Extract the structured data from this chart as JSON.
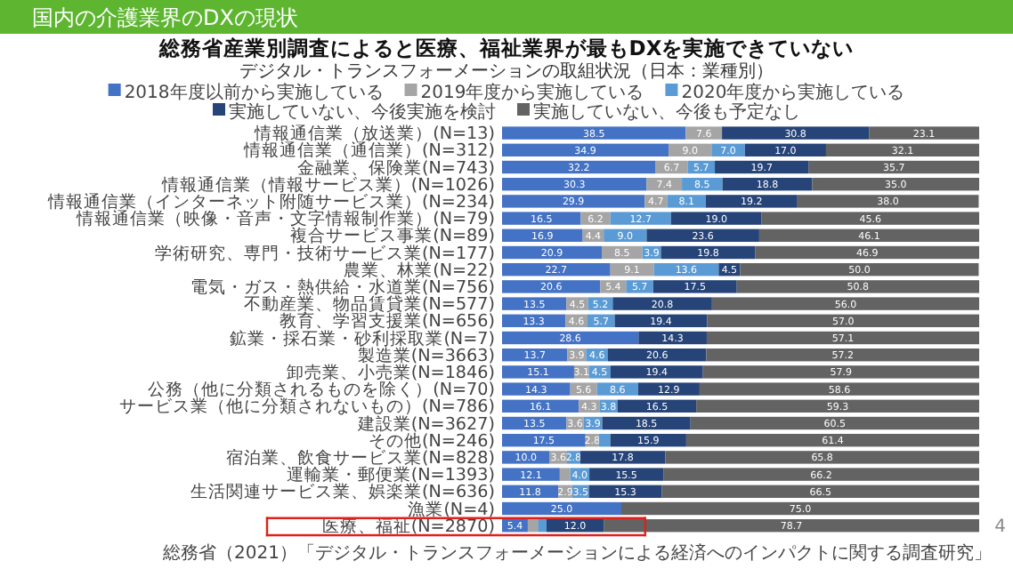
{
  "chart_data": {
    "type": "bar",
    "orientation": "horizontal",
    "stacked": true,
    "title": "国内の介護業界のDXの現状",
    "subtitle": "総務省産業別調査によると医療、福祉業界が最もDXを実施できていない",
    "annotations": [
      "デジタル・トランスフォーメーションの取組状況（日本：業種別）",
      "総務省（2021）「デジタル・トランスフォーメーションによる経済へのインパクトに関する調査研究」",
      "4"
    ],
    "categories": [
      "情報通信業（放送業）(N=13)",
      "情報通信業（通信業）(N=312)",
      "金融業、保険業(N=743)",
      "情報通信業（情報サービス業）(N=1026)",
      "情報通信業（インターネット附随サービス業）(N=234)",
      "情報通信業（映像・音声・文字情報制作業）(N=79)",
      "複合サービス事業(N=89)",
      "学術研究、専門・技術サービス業(N=177)",
      "農業、林業(N=22)",
      "電気・ガス・熱供給・水道業(N=756)",
      "不動産業、物品賃貸業(N=577)",
      "教育、学習支援業(N=656)",
      "鉱業・採石業・砂利採取業(N=7)",
      "製造業(N=3663)",
      "卸売業、小売業(N=1846)",
      "公務（他に分類されるものを除く）(N=70)",
      "サービス業（他に分類されないもの）(N=786)",
      "建設業(N=3627)",
      "その他(N=246)",
      "宿泊業、飲食サービス業(N=828)",
      "運輸業・郵便業(N=1393)",
      "生活関連サービス業、娯楽業(N=636)",
      "漁業(N=4)",
      "医療、福祉(N=2870)"
    ],
    "series": [
      {
        "name": "2018年度以前から実施している",
        "color": "#4472c4",
        "values": [
          38.5,
          34.9,
          32.2,
          30.3,
          29.9,
          16.5,
          16.9,
          20.9,
          22.7,
          20.6,
          13.5,
          13.3,
          28.6,
          13.7,
          15.1,
          14.3,
          16.1,
          13.5,
          17.5,
          10.0,
          12.1,
          11.8,
          25.0,
          5.4
        ],
        "value_labels": [
          "38.5",
          "34.9",
          "32.2",
          "30.3",
          "29.9",
          "16.5",
          "16.9",
          "20.9",
          "22.7",
          "20.6",
          "13.5",
          "13.3",
          "28.6",
          "13.7",
          "15.1",
          "14.3",
          "16.1",
          "13.5",
          "17.5",
          "10.0",
          "12.1",
          "11.8",
          "25.0",
          "5.4"
        ]
      },
      {
        "name": "2019年度から実施している",
        "color": "#a5a5a5",
        "values": [
          7.6,
          9.0,
          6.7,
          7.4,
          4.7,
          6.2,
          4.4,
          8.5,
          9.1,
          5.4,
          4.5,
          4.6,
          0.0,
          3.9,
          3.1,
          5.6,
          4.3,
          3.6,
          2.8,
          3.6,
          2.2,
          2.9,
          0.0,
          2.1
        ],
        "value_labels": [
          "7.6",
          "9.0",
          "6.7",
          "7.4",
          "4.7",
          "6.2",
          "4.4",
          "8.5",
          "9.1",
          "5.4",
          "4.5",
          "4.6",
          null,
          "3.9",
          "3.1",
          "5.6",
          "4.3",
          "3.6",
          "2.8",
          "3.6",
          null,
          "2.9",
          null,
          null
        ]
      },
      {
        "name": "2020年度から実施している",
        "color": "#5b9bd5",
        "values": [
          0.0,
          7.0,
          5.7,
          8.5,
          8.1,
          12.7,
          9.0,
          3.9,
          13.6,
          5.7,
          5.2,
          5.7,
          0.0,
          4.6,
          4.5,
          8.6,
          3.8,
          3.9,
          2.4,
          2.8,
          4.0,
          3.5,
          0.0,
          1.8
        ],
        "value_labels": [
          null,
          "7.0",
          "5.7",
          "8.5",
          "8.1",
          "12.7",
          "9.0",
          "3.9",
          "13.6",
          "5.7",
          "5.2",
          "5.7",
          null,
          "4.6",
          "4.5",
          "8.6",
          "3.8",
          "3.9",
          null,
          "2.8",
          "4.0",
          "3.5",
          null,
          null
        ]
      },
      {
        "name": "実施していない、今後実施を検討",
        "color": "#264478",
        "values": [
          30.8,
          17.0,
          19.7,
          18.8,
          19.2,
          19.0,
          23.6,
          19.8,
          4.5,
          17.5,
          20.8,
          19.4,
          14.3,
          20.6,
          19.4,
          12.9,
          16.5,
          18.5,
          15.9,
          17.8,
          15.5,
          15.3,
          0.0,
          12.0
        ],
        "value_labels": [
          "30.8",
          "17.0",
          "19.7",
          "18.8",
          "19.2",
          "19.0",
          "23.6",
          "19.8",
          "4.5",
          "17.5",
          "20.8",
          "19.4",
          "14.3",
          "20.6",
          "19.4",
          "12.9",
          "16.5",
          "18.5",
          "15.9",
          "17.8",
          "15.5",
          "15.3",
          null,
          "12.0"
        ]
      },
      {
        "name": "実施していない、今後も予定なし",
        "color": "#636363",
        "values": [
          23.1,
          32.1,
          35.7,
          35.0,
          38.0,
          45.6,
          46.1,
          46.9,
          50.0,
          50.8,
          56.0,
          57.0,
          57.1,
          57.2,
          57.9,
          58.6,
          59.3,
          60.5,
          61.4,
          65.8,
          66.2,
          66.5,
          75.0,
          78.7
        ],
        "value_labels": [
          "23.1",
          "32.1",
          "35.7",
          "35.0",
          "38.0",
          "45.6",
          "46.1",
          "46.9",
          "50.0",
          "50.8",
          "56.0",
          "57.0",
          "57.1",
          "57.2",
          "57.9",
          "58.6",
          "59.3",
          "60.5",
          "61.4",
          "65.8",
          "66.2",
          "66.5",
          "75.0",
          "78.7"
        ]
      }
    ],
    "xlim": [
      0,
      100
    ],
    "tick_labels": "y",
    "legend": "top",
    "grid": false
  }
}
